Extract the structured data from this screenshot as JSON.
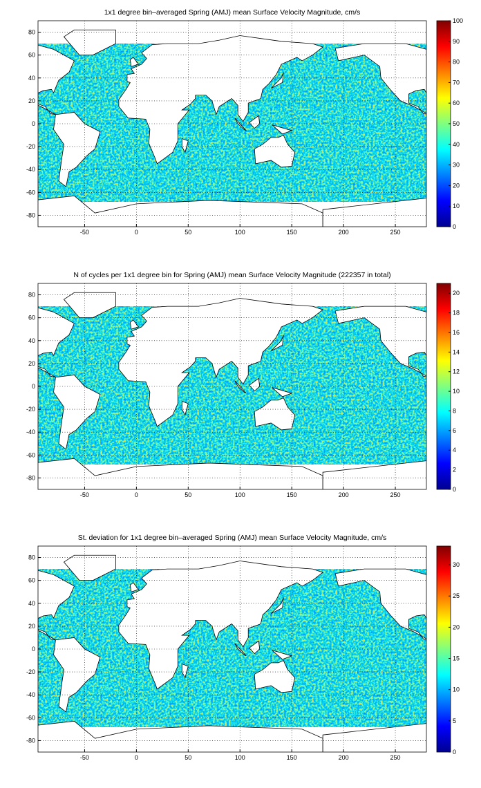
{
  "panels": [
    {
      "title": "1x1 degree bin–averaged Spring (AMJ) mean Surface Velocity Magnitude, cm/s",
      "xlim": [
        -95,
        280
      ],
      "ylim": [
        -90,
        90
      ],
      "xticks": [
        -50,
        0,
        50,
        100,
        150,
        200,
        250
      ],
      "yticks": [
        -80,
        -60,
        -40,
        -20,
        0,
        20,
        40,
        60,
        80
      ],
      "clim": [
        0,
        100
      ],
      "cticks": [
        0,
        10,
        20,
        30,
        40,
        50,
        60,
        70,
        80,
        90,
        100
      ],
      "grid": true
    },
    {
      "title": "N of cycles per 1x1 degree bin for Spring (AMJ) mean Surface Velocity Magnitude (222357 in total)",
      "xlim": [
        -95,
        280
      ],
      "ylim": [
        -90,
        90
      ],
      "xticks": [
        -50,
        0,
        50,
        100,
        150,
        200,
        250
      ],
      "yticks": [
        -80,
        -60,
        -40,
        -20,
        0,
        20,
        40,
        60,
        80
      ],
      "clim": [
        0,
        21
      ],
      "cticks": [
        0,
        2,
        4,
        6,
        8,
        10,
        12,
        14,
        16,
        18,
        20
      ],
      "grid": true
    },
    {
      "title": "St. deviation for 1x1 degree bin–averaged Spring (AMJ) mean Surface Velocity Magnitude, cm/s",
      "xlim": [
        -95,
        280
      ],
      "ylim": [
        -90,
        90
      ],
      "xticks": [
        -50,
        0,
        50,
        100,
        150,
        200,
        250
      ],
      "yticks": [
        -80,
        -60,
        -40,
        -20,
        0,
        20,
        40,
        60,
        80
      ],
      "clim": [
        0,
        33
      ],
      "cticks": [
        0,
        5,
        10,
        15,
        20,
        25,
        30
      ],
      "grid": true
    }
  ]
}
